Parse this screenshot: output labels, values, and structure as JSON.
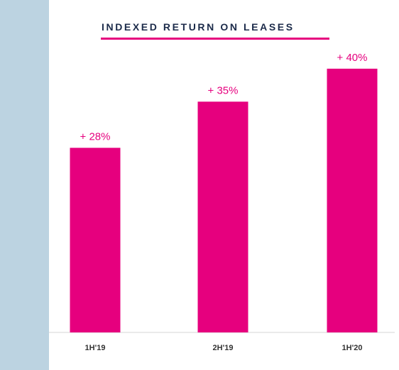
{
  "chart_data": {
    "type": "bar",
    "title": "INDEXED RETURN ON LEASES",
    "xlabel": "",
    "ylabel": "",
    "categories": [
      "1H'19",
      "2H'19",
      "1H'20"
    ],
    "values": [
      28,
      35,
      40
    ],
    "data_labels": [
      "+ 28%",
      "+ 35%",
      "+ 40%"
    ],
    "ylim": [
      0,
      43
    ],
    "grid": false,
    "legend": "none",
    "bar_color": "#e6007e"
  },
  "colors": {
    "accent": "#e6007e",
    "side_band": "#bcd3e1",
    "title_text": "#1c2b4a"
  }
}
